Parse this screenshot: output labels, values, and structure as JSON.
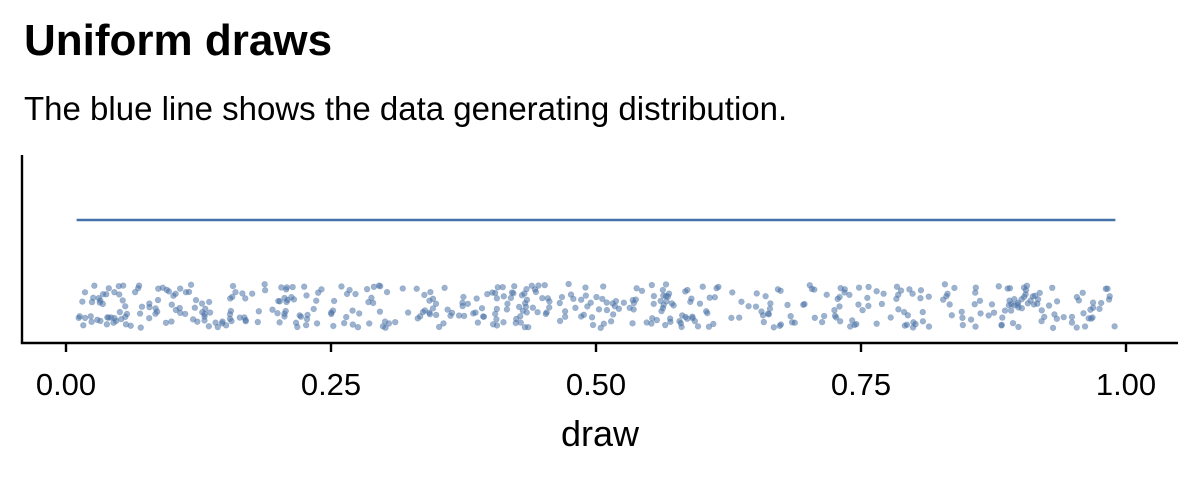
{
  "chart_data": {
    "type": "scatter",
    "title": "Uniform draws",
    "subtitle": "The blue line shows the data generating distribution.",
    "xlabel": "draw",
    "ylabel": "",
    "xlim": [
      -0.02,
      1.05
    ],
    "x_ticks": [
      0.0,
      0.25,
      0.5,
      0.75,
      1.0
    ],
    "x_tick_labels": [
      "0.00",
      "0.25",
      "0.50",
      "0.75",
      "1.00"
    ],
    "density_line": {
      "x": [
        0.01,
        0.99
      ],
      "y": [
        1,
        1
      ]
    },
    "point_count": 500,
    "y_axis_ticks": false,
    "grid": false,
    "colors": {
      "line": "#4472a8",
      "points": "#4a72a6",
      "axis": "#000000"
    }
  }
}
